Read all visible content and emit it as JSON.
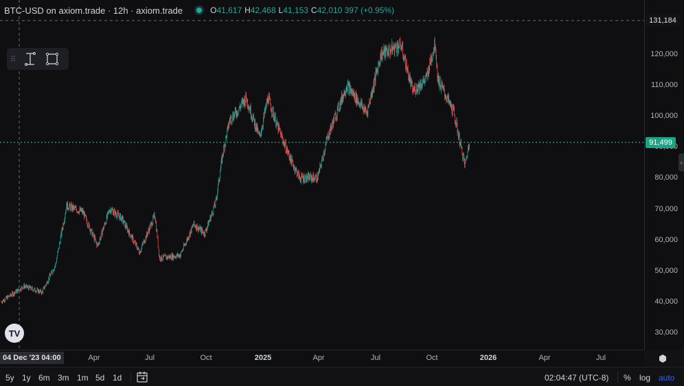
{
  "legend": {
    "title": "BTC-USD on axiom.trade · 12h · axiom.trade",
    "o_key": "O",
    "o_val": "41,617",
    "h_key": "H",
    "h_val": "42,468",
    "l_key": "L",
    "l_val": "41,153",
    "c_key": "C",
    "c_val": "42,010 397 (+0.95%)"
  },
  "colors": {
    "up": "#26a69a",
    "down": "#ef5350",
    "last_price": "#1aa584",
    "accent": "#2962ff"
  },
  "toolbar_icons": [
    "drag-handle-icon",
    "text-cursor-icon",
    "rectangle-icon"
  ],
  "price_axis": {
    "ticks": [
      "120,000",
      "110,000",
      "100,000",
      "90,000",
      "80,000",
      "70,000",
      "60,000",
      "50,000",
      "40,000",
      "30,000"
    ],
    "last_price": "91,499",
    "crosshair_price": "131,184"
  },
  "time_axis": {
    "crosshair_time": "04 Dec '23   04:00",
    "labels": [
      "Apr",
      "Jul",
      "Oct",
      "2025",
      "Apr",
      "Jul",
      "Oct",
      "2026",
      "Apr",
      "Jul"
    ]
  },
  "bottom_bar": {
    "ranges": [
      "5y",
      "1y",
      "6m",
      "3m",
      "1m",
      "5d",
      "1d"
    ],
    "clock": "02:04:47 (UTC-8)",
    "percent": "%",
    "log": "log",
    "auto": "auto"
  },
  "logo_text": "TV",
  "chart_data": {
    "type": "candlestick",
    "title": "BTC-USD on axiom.trade · 12h · axiom.trade",
    "interval": "12h",
    "y_range": [
      25000,
      134000
    ],
    "x_range": [
      "2023-12-04",
      "2026-08-31"
    ],
    "last_price": 91499,
    "crosshair": {
      "price": 131184,
      "time": "04 Dec '23 04:00"
    },
    "grid": false,
    "series": [
      {
        "x": [
          "2023-12-04",
          "2024-01-08",
          "2024-02-05",
          "2024-02-26",
          "2024-03-14",
          "2024-04-08",
          "2024-05-01",
          "2024-05-20",
          "2024-06-07",
          "2024-07-05",
          "2024-07-29",
          "2024-08-05",
          "2024-09-06",
          "2024-09-27",
          "2024-10-14",
          "2024-10-31",
          "2024-11-11",
          "2024-11-22",
          "2024-12-05",
          "2024-12-17",
          "2025-01-07",
          "2025-01-20",
          "2025-02-03",
          "2025-02-24",
          "2025-03-10",
          "2025-04-07",
          "2025-04-22",
          "2025-05-22",
          "2025-06-22",
          "2025-07-14",
          "2025-08-14",
          "2025-09-01",
          "2025-09-22",
          "2025-10-06",
          "2025-10-10",
          "2025-11-04",
          "2025-11-21",
          "2025-11-28"
        ],
        "values": [
          40000,
          45000,
          43000,
          52000,
          71000,
          69000,
          58000,
          70000,
          67000,
          56000,
          68000,
          54000,
          55000,
          65000,
          62000,
          72000,
          88000,
          99000,
          102000,
          106000,
          93000,
          106000,
          97000,
          86000,
          80000,
          80000,
          93000,
          110000,
          101000,
          120000,
          123000,
          108000,
          112000,
          124000,
          112000,
          101000,
          84000,
          91499
        ]
      }
    ]
  }
}
